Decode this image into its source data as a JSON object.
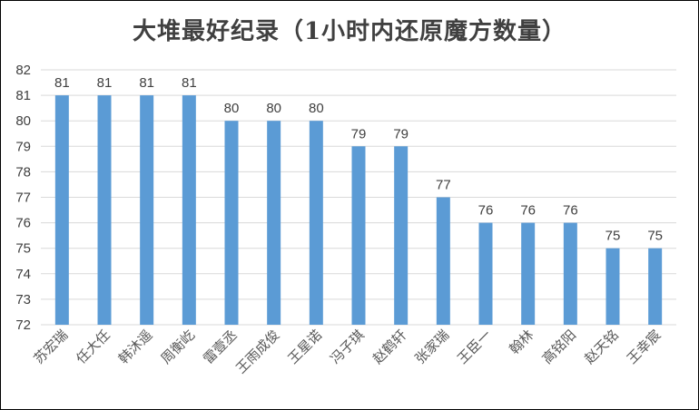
{
  "chart_data": {
    "type": "bar",
    "title": "大堆最好纪录（1小时内还原魔方数量）",
    "categories": [
      "苏宏瑞",
      "任大任",
      "韩沐遥",
      "周衡屹",
      "雷壹丞",
      "王雨成俊",
      "王星诺",
      "冯子琪",
      "赵鹤轩",
      "张家瑞",
      "王臣一",
      "翰林",
      "高铭阳",
      "赵天铭",
      "王幸宸"
    ],
    "values": [
      81,
      81,
      81,
      81,
      80,
      80,
      80,
      79,
      79,
      77,
      76,
      76,
      76,
      75,
      75
    ],
    "ylim": [
      72,
      82
    ],
    "yticks": [
      72,
      73,
      74,
      75,
      76,
      77,
      78,
      79,
      80,
      81,
      82
    ],
    "xlabel": "",
    "ylabel": "",
    "grid": true,
    "data_labels": true,
    "bar_color": "#5b9bd5"
  }
}
